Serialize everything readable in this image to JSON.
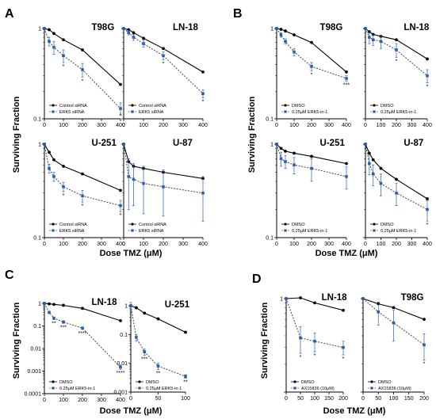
{
  "figure": {
    "panel_letters": [
      "A",
      "B",
      "C",
      "D"
    ],
    "y_axis_title": "Surviving Fraction",
    "x_axis_title": "Dose TMZ (μM)",
    "colors": {
      "control": "#000000",
      "treatment": "#2a5fb0"
    }
  },
  "chart_data": [
    {
      "panel": "A",
      "type": "line",
      "title": "T98G",
      "yscale": "log",
      "ylim": [
        0.1,
        1
      ],
      "xlim": [
        0,
        400
      ],
      "x": [
        0,
        25,
        50,
        100,
        200,
        400
      ],
      "xticks": [
        "0",
        "100",
        "200",
        "300",
        "400"
      ],
      "yticks": [
        "1",
        "0.1"
      ],
      "series": [
        {
          "name": "Control siRNA",
          "values": [
            1.0,
            0.97,
            0.88,
            0.75,
            0.58,
            0.24
          ]
        },
        {
          "name": "ERK5 siRNA",
          "values": [
            1.0,
            0.72,
            0.62,
            0.5,
            0.35,
            0.13
          ],
          "errors": [
            0,
            0.08,
            0.1,
            0.08,
            0.06,
            0.02
          ]
        }
      ],
      "annotations": [
        "*",
        "*",
        "*"
      ]
    },
    {
      "panel": "A",
      "type": "line",
      "title": "LN-18",
      "yscale": "log",
      "ylim": [
        0.1,
        1
      ],
      "xlim": [
        0,
        400
      ],
      "x": [
        0,
        25,
        50,
        100,
        200,
        400
      ],
      "xticks": [
        "0",
        "100",
        "200",
        "300",
        "400"
      ],
      "yticks": [],
      "series": [
        {
          "name": "Control siRNA",
          "values": [
            1.0,
            0.97,
            0.9,
            0.78,
            0.6,
            0.33
          ]
        },
        {
          "name": "ERK5 siRNA",
          "values": [
            1.0,
            0.9,
            0.8,
            0.68,
            0.5,
            0.19
          ],
          "errors": [
            0,
            0.05,
            0.06,
            0.06,
            0.05,
            0.02
          ]
        }
      ],
      "annotations": [
        "*",
        "*"
      ]
    },
    {
      "panel": "A",
      "type": "line",
      "title": "U-251",
      "yscale": "log",
      "ylim": [
        0.1,
        1
      ],
      "xlim": [
        0,
        400
      ],
      "x": [
        0,
        25,
        50,
        100,
        200,
        400
      ],
      "xticks": [
        "0",
        "100",
        "200",
        "300",
        "400"
      ],
      "yticks": [
        "1",
        "0.1"
      ],
      "series": [
        {
          "name": "Control siRNA",
          "values": [
            1.0,
            0.82,
            0.68,
            0.58,
            0.48,
            0.32
          ]
        },
        {
          "name": "ERK5 siRNA",
          "values": [
            1.0,
            0.55,
            0.45,
            0.35,
            0.28,
            0.22
          ],
          "errors": [
            0,
            0.06,
            0.05,
            0.04,
            0.04,
            0.03
          ]
        }
      ],
      "annotations": [
        "*",
        "*",
        "*"
      ]
    },
    {
      "panel": "A",
      "type": "line",
      "title": "U-87",
      "yscale": "log",
      "ylim": [
        0.1,
        1
      ],
      "xlim": [
        0,
        400
      ],
      "x": [
        0,
        25,
        50,
        100,
        200,
        400
      ],
      "xticks": [
        "0",
        "100",
        "200",
        "300",
        "400"
      ],
      "yticks": [],
      "series": [
        {
          "name": "Control siRNA",
          "values": [
            1.0,
            0.65,
            0.58,
            0.55,
            0.5,
            0.43
          ]
        },
        {
          "name": "ERK5 siRNA",
          "values": [
            1.0,
            0.45,
            0.42,
            0.38,
            0.35,
            0.3
          ],
          "errors": [
            0,
            0.25,
            0.2,
            0.2,
            0.18,
            0.15
          ]
        }
      ]
    },
    {
      "panel": "B",
      "type": "line",
      "title": "T98G",
      "yscale": "log",
      "ylim": [
        0.1,
        1
      ],
      "xlim": [
        0,
        400
      ],
      "x": [
        0,
        25,
        50,
        100,
        200,
        400
      ],
      "xticks": [
        "0",
        "100",
        "200",
        "300",
        "400"
      ],
      "yticks": [
        "1",
        "0.1"
      ],
      "series": [
        {
          "name": "DMSO",
          "values": [
            1.0,
            0.98,
            0.94,
            0.85,
            0.7,
            0.33
          ]
        },
        {
          "name": "0.25μM ERK5-in-1",
          "values": [
            1.0,
            0.85,
            0.72,
            0.55,
            0.38,
            0.28
          ],
          "errors": [
            0,
            0.05,
            0.05,
            0.05,
            0.04,
            0.02
          ]
        }
      ],
      "annotations": [
        "*",
        "***"
      ]
    },
    {
      "panel": "B",
      "type": "line",
      "title": "LN-18",
      "yscale": "log",
      "ylim": [
        0.1,
        1
      ],
      "xlim": [
        0,
        400
      ],
      "x": [
        0,
        25,
        50,
        100,
        200,
        400
      ],
      "xticks": [
        "0",
        "100",
        "200",
        "300",
        "400"
      ],
      "yticks": [],
      "series": [
        {
          "name": "DMSO",
          "values": [
            1.0,
            0.92,
            0.86,
            0.82,
            0.75,
            0.46
          ]
        },
        {
          "name": "0.25μM ERK5-in-1",
          "values": [
            1.0,
            0.8,
            0.75,
            0.72,
            0.58,
            0.3
          ],
          "errors": [
            0,
            0.12,
            0.1,
            0.12,
            0.1,
            0.05
          ]
        }
      ],
      "annotations": [
        "*",
        "*"
      ]
    },
    {
      "panel": "B",
      "type": "line",
      "title": "U-251",
      "yscale": "log",
      "ylim": [
        0.1,
        1
      ],
      "xlim": [
        0,
        400
      ],
      "x": [
        0,
        25,
        50,
        100,
        200,
        400
      ],
      "xticks": [
        "0",
        "100",
        "200",
        "300",
        "400"
      ],
      "yticks": [
        "1",
        "0.1"
      ],
      "series": [
        {
          "name": "DMSO",
          "values": [
            1.0,
            0.9,
            0.84,
            0.8,
            0.74,
            0.62
          ]
        },
        {
          "name": "0.25μM ERK5-in-1",
          "values": [
            1.0,
            0.7,
            0.65,
            0.6,
            0.55,
            0.45
          ],
          "errors": [
            0,
            0.12,
            0.1,
            0.12,
            0.15,
            0.12
          ]
        }
      ]
    },
    {
      "panel": "B",
      "type": "line",
      "title": "U-87",
      "yscale": "log",
      "ylim": [
        0.1,
        1
      ],
      "xlim": [
        0,
        400
      ],
      "x": [
        0,
        25,
        50,
        100,
        200,
        400
      ],
      "xticks": [
        "0",
        "100",
        "200",
        "300",
        "400"
      ],
      "yticks": [],
      "series": [
        {
          "name": "DMSO",
          "values": [
            1.0,
            0.8,
            0.68,
            0.55,
            0.42,
            0.26
          ]
        },
        {
          "name": "0.25μM ERK5-in-1",
          "values": [
            1.0,
            0.62,
            0.48,
            0.38,
            0.3,
            0.2
          ],
          "errors": [
            0,
            0.15,
            0.12,
            0.1,
            0.08,
            0.05
          ]
        }
      ],
      "annotations": [
        "*"
      ]
    },
    {
      "panel": "C",
      "type": "line",
      "title": "LN-18",
      "yscale": "log",
      "ylim": [
        0.0001,
        1
      ],
      "xlim": [
        0,
        400
      ],
      "x": [
        0,
        25,
        50,
        100,
        200,
        400
      ],
      "xticks": [
        "0",
        "100",
        "200",
        "300",
        "400"
      ],
      "yticks": [
        "1",
        "0.1",
        "0.01",
        "0.001",
        "0.0001"
      ],
      "series": [
        {
          "name": "DMSO",
          "values": [
            1.0,
            0.95,
            0.9,
            0.82,
            0.6,
            0.17
          ]
        },
        {
          "name": "0.25μM ERK5-in-1",
          "values": [
            1.0,
            0.4,
            0.22,
            0.15,
            0.08,
            0.0015
          ],
          "errors": [
            0,
            0.05,
            0.03,
            0.02,
            0.01,
            0.0003
          ]
        }
      ],
      "annotations": [
        "**",
        "***",
        "****",
        "****"
      ]
    },
    {
      "panel": "C",
      "type": "line",
      "title": "U-251",
      "yscale": "log",
      "ylim": [
        0.001,
        1
      ],
      "xlim": [
        0,
        100
      ],
      "x": [
        0,
        10,
        25,
        50,
        100
      ],
      "xticks": [
        "0",
        "50",
        "100"
      ],
      "yticks": [
        "1",
        "0.1",
        "0.01",
        "0.001"
      ],
      "series": [
        {
          "name": "DMSO",
          "values": [
            1.0,
            0.85,
            0.55,
            0.35,
            0.12
          ]
        },
        {
          "name": "0.25μM ERK5-in-1",
          "values": [
            1.0,
            0.08,
            0.025,
            0.008,
            0.0035
          ],
          "errors": [
            0.3,
            0.02,
            0.006,
            0.002,
            0.0005
          ]
        }
      ],
      "annotations": [
        "***",
        "**",
        "**"
      ]
    },
    {
      "panel": "D",
      "type": "line",
      "title": "LN-18",
      "yscale": "log",
      "ylim": [
        0.1,
        1
      ],
      "xlim": [
        0,
        200
      ],
      "x": [
        0,
        50,
        100,
        200
      ],
      "xticks": [
        "0",
        "50",
        "100",
        "150",
        "200"
      ],
      "yticks": [
        "1"
      ],
      "series": [
        {
          "name": "DMSO",
          "values": [
            1.0,
            1.02,
            0.9,
            0.75
          ]
        },
        {
          "name": "AX15836 (10μM)",
          "values": [
            1.0,
            0.38,
            0.35,
            0.3
          ],
          "errors": [
            0,
            0.12,
            0.08,
            0.05
          ]
        }
      ],
      "annotations": [
        "*",
        "*",
        "*"
      ]
    },
    {
      "panel": "D",
      "type": "line",
      "title": "T98G",
      "yscale": "log",
      "ylim": [
        0.1,
        1
      ],
      "xlim": [
        0,
        200
      ],
      "x": [
        0,
        50,
        100,
        200
      ],
      "xticks": [
        "0",
        "50",
        "100",
        "150",
        "200"
      ],
      "yticks": [],
      "series": [
        {
          "name": "DMSO",
          "values": [
            1.0,
            0.88,
            0.8,
            0.6
          ]
        },
        {
          "name": "AX15836 (10μM)",
          "values": [
            1.0,
            0.72,
            0.55,
            0.32
          ],
          "errors": [
            0,
            0.2,
            0.2,
            0.1
          ]
        }
      ],
      "annotations": [
        "*"
      ]
    }
  ]
}
